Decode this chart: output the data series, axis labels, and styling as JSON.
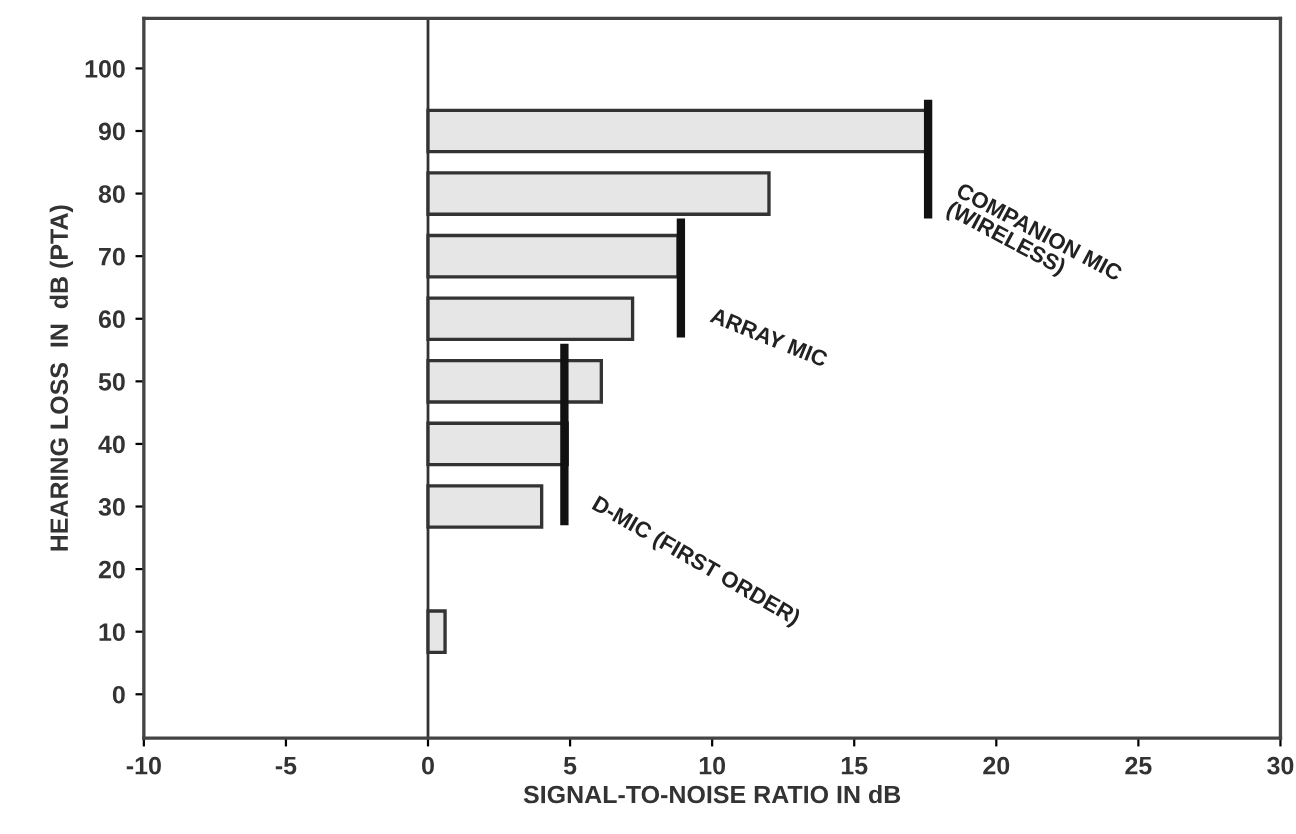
{
  "chart_data": {
    "type": "bar",
    "orientation": "horizontal",
    "xlabel": "SIGNAL-TO-NOISE RATIO IN dB",
    "ylabel": "HEARING LOSS  IN  dB (PTA)",
    "xlim": [
      -10,
      30
    ],
    "xticks": [
      -10,
      -5,
      0,
      5,
      10,
      15,
      20,
      25,
      30
    ],
    "ylim": [
      -7,
      108
    ],
    "yticks": [
      0,
      10,
      20,
      30,
      40,
      50,
      60,
      70,
      80,
      90,
      100
    ],
    "grid": false,
    "legend": false,
    "ref_lines": [
      {
        "axis": "x",
        "value": 0,
        "color": "#333333"
      }
    ],
    "series": [
      {
        "color": "#e6e6e6",
        "x": [
          90,
          80,
          70,
          60,
          50,
          40,
          30,
          10
        ],
        "values": [
          17.6,
          12.0,
          8.8,
          7.2,
          6.1,
          4.9,
          4.0,
          0.6
        ]
      },
      {
        "type": "line",
        "name": "COMPANION MIC\n(WIRELESS)",
        "color": "#111111",
        "x": [
          95,
          76
        ],
        "values": [
          17.6,
          17.6
        ]
      },
      {
        "type": "line",
        "name": "ARRAY MIC",
        "color": "#111111",
        "x": [
          76,
          57
        ],
        "values": [
          8.9,
          8.9
        ]
      },
      {
        "type": "line",
        "name": "D-MIC (FIRST ORDER)",
        "color": "#111111",
        "x": [
          56,
          27
        ],
        "values": [
          4.8,
          4.8
        ]
      }
    ]
  }
}
